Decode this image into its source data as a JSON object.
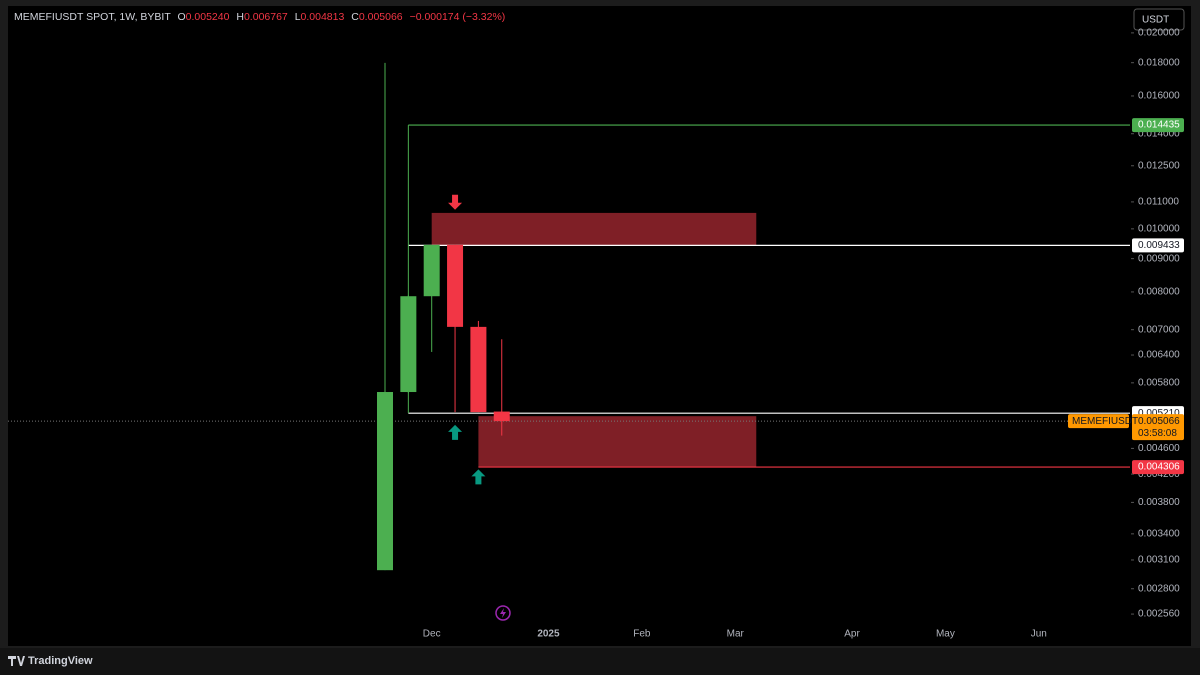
{
  "header": {
    "symbol": "MEMEFIUSDT SPOT, 1W, BYBIT",
    "ohlc": [
      {
        "label": "O",
        "value": "0.005240"
      },
      {
        "label": "H",
        "value": "0.006767"
      },
      {
        "label": "L",
        "value": "0.004813"
      },
      {
        "label": "C",
        "value": "0.005066"
      }
    ],
    "change": "−0.000174 (−3.32%)"
  },
  "currency_button": "USDT",
  "brand": "TradingView",
  "chart_data": {
    "type": "candlestick",
    "categories": [
      null,
      null,
      "Dec",
      null,
      null,
      null,
      null,
      "2025",
      null,
      null,
      null,
      "Feb",
      null,
      null,
      null,
      "Mar",
      null,
      null,
      null,
      null,
      "Apr",
      null,
      null,
      null,
      "May",
      null,
      null,
      null,
      "Jun",
      null
    ],
    "open": [
      0.00299,
      0.005615,
      0.00788,
      0.00945,
      0.00707,
      0.00524,
      null,
      null,
      null,
      null,
      null,
      null,
      null,
      null,
      null,
      null,
      null,
      null,
      null,
      null,
      null,
      null,
      null,
      null,
      null,
      null,
      null,
      null,
      null,
      null
    ],
    "high": [
      0.01799,
      0.0079,
      0.00945,
      0.00945,
      0.00722,
      0.006767,
      null,
      null,
      null,
      null,
      null,
      null,
      null,
      null,
      null,
      null,
      null,
      null,
      null,
      null,
      null,
      null,
      null,
      null,
      null,
      null,
      null,
      null,
      null,
      null
    ],
    "low": [
      0.00299,
      0.0056,
      0.00647,
      0.00523,
      0.00523,
      0.004813,
      null,
      null,
      null,
      null,
      null,
      null,
      null,
      null,
      null,
      null,
      null,
      null,
      null,
      null,
      null,
      null,
      null,
      null,
      null,
      null,
      null,
      null,
      null,
      null
    ],
    "close": [
      0.005615,
      0.00788,
      0.00945,
      0.00707,
      0.00523,
      0.005066,
      null,
      null,
      null,
      null,
      null,
      null,
      null,
      null,
      null,
      null,
      null,
      null,
      null,
      null,
      null,
      null,
      null,
      null,
      null,
      null,
      null,
      null,
      null,
      null
    ],
    "up_color": "#4caf50",
    "down_color": "#f23645",
    "ylim": [
      0.002463,
      0.02184
    ],
    "log_scale": true,
    "grid": false,
    "yticks": [
      {
        "value": 0.02,
        "label": "0.020000"
      },
      {
        "value": 0.018,
        "label": "0.018000"
      },
      {
        "value": 0.016,
        "label": "0.016000"
      },
      {
        "value": 0.014,
        "label": "0.014000"
      },
      {
        "value": 0.0125,
        "label": "0.012500"
      },
      {
        "value": 0.011,
        "label": "0.011000"
      },
      {
        "value": 0.01,
        "label": "0.010000"
      },
      {
        "value": 0.009,
        "label": "0.009000"
      },
      {
        "value": 0.008,
        "label": "0.008000"
      },
      {
        "value": 0.007,
        "label": "0.007000"
      },
      {
        "value": 0.0064,
        "label": "0.006400"
      },
      {
        "value": 0.0058,
        "label": "0.005800"
      },
      {
        "value": 0.0046,
        "label": "0.004600"
      },
      {
        "value": 0.0042,
        "label": "0.004200"
      },
      {
        "value": 0.0038,
        "label": "0.003800"
      },
      {
        "value": 0.0034,
        "label": "0.003400"
      },
      {
        "value": 0.0031,
        "label": "0.003100"
      },
      {
        "value": 0.0028,
        "label": "0.002800"
      },
      {
        "value": 0.00256,
        "label": "0.002560"
      }
    ],
    "levels": [
      {
        "value": 0.014435,
        "color": "#4caf50"
      },
      {
        "value": 0.009433,
        "color": "#ffffff"
      },
      {
        "value": 0.00521,
        "label": "0.005210",
        "color": "#ffffff"
      },
      {
        "value": 0.004306,
        "color": "#f23645"
      }
    ],
    "zones": [
      {
        "top": 0.01058,
        "bottom": 0.009433,
        "color": "#7f1f26"
      },
      {
        "top": 0.005155,
        "bottom": 0.004306,
        "color": "#7f1f26"
      }
    ],
    "arrows": [
      {
        "value": 0.0107,
        "direction": "down",
        "color": "#f23645"
      },
      {
        "value": 0.005,
        "direction": "up",
        "color": "#089981"
      },
      {
        "value": 0.00427,
        "direction": "up",
        "color": "#089981"
      }
    ],
    "last_price": {
      "value": 0.005066,
      "symbol": "MEMEFIUSDT",
      "countdown": "03:58:08",
      "color": "#ff9800"
    }
  }
}
